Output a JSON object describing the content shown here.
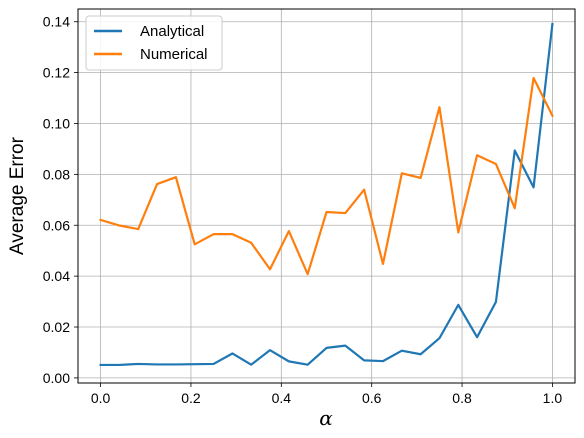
{
  "chart_data": {
    "type": "line",
    "xlabel": "α",
    "ylabel": "Average Error",
    "xlim": [
      -0.05,
      1.05
    ],
    "ylim": [
      -0.002,
      0.145
    ],
    "xticks": [
      0.0,
      0.2,
      0.4,
      0.6,
      0.8,
      1.0
    ],
    "xtick_labels": [
      "0.0",
      "0.2",
      "0.4",
      "0.6",
      "0.8",
      "1.0"
    ],
    "yticks": [
      0.0,
      0.02,
      0.04,
      0.06,
      0.08,
      0.1,
      0.12,
      0.14
    ],
    "ytick_labels": [
      "0.00",
      "0.02",
      "0.04",
      "0.06",
      "0.08",
      "0.10",
      "0.12",
      "0.14"
    ],
    "grid": true,
    "legend_position": "upper-left",
    "x": [
      0.0,
      0.0417,
      0.0833,
      0.125,
      0.1667,
      0.2083,
      0.25,
      0.2917,
      0.3333,
      0.375,
      0.4167,
      0.4583,
      0.5,
      0.5417,
      0.5833,
      0.625,
      0.6667,
      0.7083,
      0.75,
      0.7917,
      0.8333,
      0.875,
      0.9167,
      0.9583,
      1.0
    ],
    "series": [
      {
        "name": "Analytical",
        "color": "#1f77b4",
        "values": [
          0.0051,
          0.0051,
          0.0055,
          0.0053,
          0.0053,
          0.0054,
          0.0055,
          0.0096,
          0.0052,
          0.0109,
          0.0065,
          0.0052,
          0.0118,
          0.0127,
          0.0069,
          0.0066,
          0.0107,
          0.0093,
          0.0156,
          0.0287,
          0.016,
          0.0299,
          0.0894,
          0.0749,
          0.1391
        ]
      },
      {
        "name": "Numerical",
        "color": "#ff7f0e",
        "values": [
          0.0621,
          0.0599,
          0.0585,
          0.0762,
          0.0789,
          0.0525,
          0.0565,
          0.0565,
          0.0531,
          0.0427,
          0.0577,
          0.0408,
          0.0652,
          0.0648,
          0.074,
          0.0448,
          0.0804,
          0.0786,
          0.1064,
          0.0572,
          0.0875,
          0.0841,
          0.0667,
          0.1179,
          0.1031
        ]
      }
    ]
  }
}
